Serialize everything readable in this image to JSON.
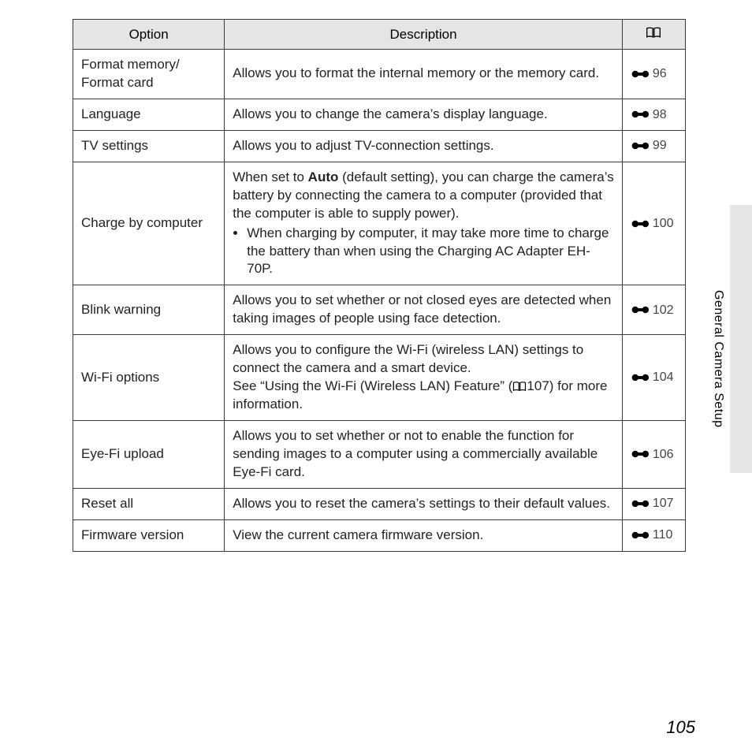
{
  "sideLabel": "General Camera Setup",
  "pageNumber": "105",
  "table": {
    "headers": {
      "option": "Option",
      "description": "Description",
      "refIcon": "book-icon"
    },
    "columnWidths": {
      "option": 192,
      "description": 504,
      "ref": 80
    },
    "colors": {
      "headerBg": "#e5e5e5",
      "border": "#3a3a3a",
      "text": "#222222",
      "refText": "#444444",
      "sideTabBg": "#e5e5e5",
      "pageBg": "#ffffff"
    },
    "fontSizes": {
      "header": 17,
      "cell": 17,
      "ref": 16,
      "pageNumber": 22,
      "sideLabel": 16
    },
    "rows": [
      {
        "option": "Format memory/\nFormat card",
        "descriptionParts": [
          {
            "t": "text",
            "v": "Allows you to format the internal memory or the memory card."
          }
        ],
        "ref": "96"
      },
      {
        "option": "Language",
        "descriptionParts": [
          {
            "t": "text",
            "v": "Allows you to change the camera’s display language."
          }
        ],
        "ref": "98"
      },
      {
        "option": "TV settings",
        "descriptionParts": [
          {
            "t": "text",
            "v": "Allows you to adjust TV-connection settings."
          }
        ],
        "ref": "99"
      },
      {
        "option": "Charge by computer",
        "descriptionParts": [
          {
            "t": "text",
            "v": "When set to "
          },
          {
            "t": "bold",
            "v": "Auto"
          },
          {
            "t": "text",
            "v": " (default setting), you can charge the camera’s battery by connecting the camera to a computer (provided that the computer is able to supply power)."
          },
          {
            "t": "bullet",
            "v": "When charging by computer, it may take more time to charge the battery than when using the Charging AC Adapter EH-70P."
          }
        ],
        "ref": "100"
      },
      {
        "option": "Blink warning",
        "descriptionParts": [
          {
            "t": "text",
            "v": "Allows you to set whether or not closed eyes are detected when taking images of people using face detection."
          }
        ],
        "ref": "102"
      },
      {
        "option": "Wi-Fi options",
        "descriptionParts": [
          {
            "t": "text",
            "v": "Allows you to configure the Wi-Fi (wireless LAN) settings to connect the camera and a smart device."
          },
          {
            "t": "br"
          },
          {
            "t": "text",
            "v": "See “Using the Wi-Fi (Wireless LAN) Feature” ("
          },
          {
            "t": "book"
          },
          {
            "t": "text",
            "v": "107) for more information."
          }
        ],
        "ref": "104"
      },
      {
        "option": "Eye-Fi upload",
        "descriptionParts": [
          {
            "t": "text",
            "v": "Allows you to set whether or not to enable the function for sending images to a computer using a commercially available Eye-Fi card."
          }
        ],
        "ref": "106"
      },
      {
        "option": "Reset all",
        "descriptionParts": [
          {
            "t": "text",
            "v": "Allows you to reset the camera’s settings to their default values."
          }
        ],
        "ref": "107"
      },
      {
        "option": "Firmware version",
        "descriptionParts": [
          {
            "t": "text",
            "v": "View the current camera firmware version."
          }
        ],
        "ref": "110"
      }
    ]
  }
}
